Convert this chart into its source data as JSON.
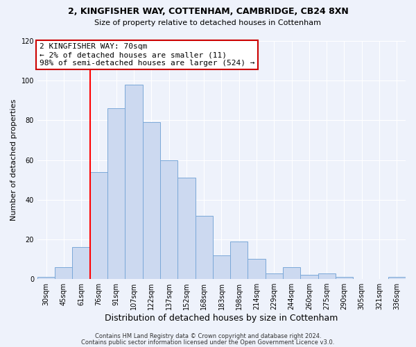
{
  "title1": "2, KINGFISHER WAY, COTTENHAM, CAMBRIDGE, CB24 8XN",
  "title2": "Size of property relative to detached houses in Cottenham",
  "xlabel": "Distribution of detached houses by size in Cottenham",
  "ylabel": "Number of detached properties",
  "bar_labels": [
    "30sqm",
    "45sqm",
    "61sqm",
    "76sqm",
    "91sqm",
    "107sqm",
    "122sqm",
    "137sqm",
    "152sqm",
    "168sqm",
    "183sqm",
    "198sqm",
    "214sqm",
    "229sqm",
    "244sqm",
    "260sqm",
    "275sqm",
    "290sqm",
    "305sqm",
    "321sqm",
    "336sqm"
  ],
  "bar_heights": [
    1,
    6,
    16,
    54,
    86,
    98,
    79,
    60,
    51,
    32,
    12,
    19,
    10,
    3,
    6,
    2,
    3,
    1,
    0,
    0,
    1
  ],
  "bar_color": "#ccd9f0",
  "bar_edge_color": "#7aa8d8",
  "ylim": [
    0,
    120
  ],
  "yticks": [
    0,
    20,
    40,
    60,
    80,
    100,
    120
  ],
  "red_line_x": 2.5,
  "annotation_line1": "2 KINGFISHER WAY: 70sqm",
  "annotation_line2": "← 2% of detached houses are smaller (11)",
  "annotation_line3": "98% of semi-detached houses are larger (524) →",
  "annotation_box_color": "#ffffff",
  "annotation_box_edge_color": "#cc0000",
  "footer1": "Contains HM Land Registry data © Crown copyright and database right 2024.",
  "footer2": "Contains public sector information licensed under the Open Government Licence v3.0.",
  "background_color": "#eef2fb",
  "plot_background": "#eef2fb",
  "grid_color": "#ffffff",
  "title_fontsize": 9,
  "subtitle_fontsize": 8,
  "annot_fontsize": 8,
  "ylabel_fontsize": 8,
  "xlabel_fontsize": 9,
  "tick_fontsize": 7,
  "footer_fontsize": 6
}
